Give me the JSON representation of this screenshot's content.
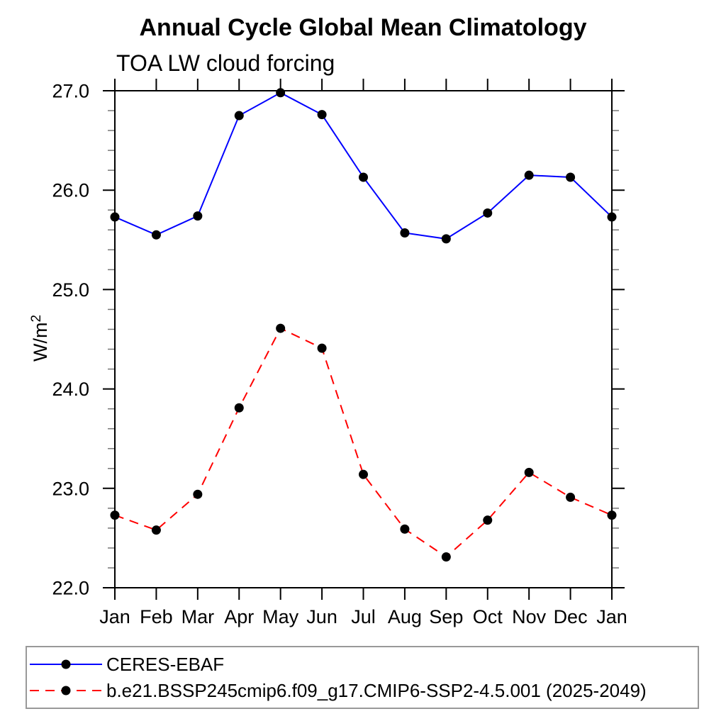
{
  "chart_data": {
    "type": "line",
    "title": "Annual Cycle Global Mean Climatology",
    "subtitle": "TOA LW cloud forcing",
    "xlabel": "",
    "ylabel": "W/m",
    "ylabel_superscript": "2",
    "categories": [
      "Jan",
      "Feb",
      "Mar",
      "Apr",
      "May",
      "Jun",
      "Jul",
      "Aug",
      "Sep",
      "Oct",
      "Nov",
      "Dec",
      "Jan"
    ],
    "ylim": [
      22.0,
      27.0
    ],
    "yticks": {
      "values": [
        22.0,
        23.0,
        24.0,
        25.0,
        26.0,
        27.0
      ],
      "labels": [
        "22.0",
        "23.0",
        "24.0",
        "25.0",
        "26.0",
        "27.0"
      ],
      "minor_step": 0.2
    },
    "grid": false,
    "legend_position": "bottom",
    "axis_color": "#000000",
    "series": [
      {
        "name": "CERES-EBAF",
        "color": "#0000ff",
        "line_style": "solid",
        "marker": "circle",
        "marker_color": "#000000",
        "values": [
          25.73,
          25.55,
          25.74,
          26.75,
          26.98,
          26.76,
          26.13,
          25.57,
          25.51,
          25.77,
          26.15,
          26.13,
          25.73
        ]
      },
      {
        "name": "b.e21.BSSP245cmip6.f09_g17.CMIP6-SSP2-4.5.001 (2025-2049)",
        "color": "#ff0000",
        "line_style": "dashed",
        "marker": "circle",
        "marker_color": "#000000",
        "values": [
          22.73,
          22.58,
          22.94,
          23.81,
          24.61,
          24.41,
          23.14,
          22.59,
          22.31,
          22.68,
          23.16,
          22.91,
          22.73
        ]
      }
    ]
  }
}
